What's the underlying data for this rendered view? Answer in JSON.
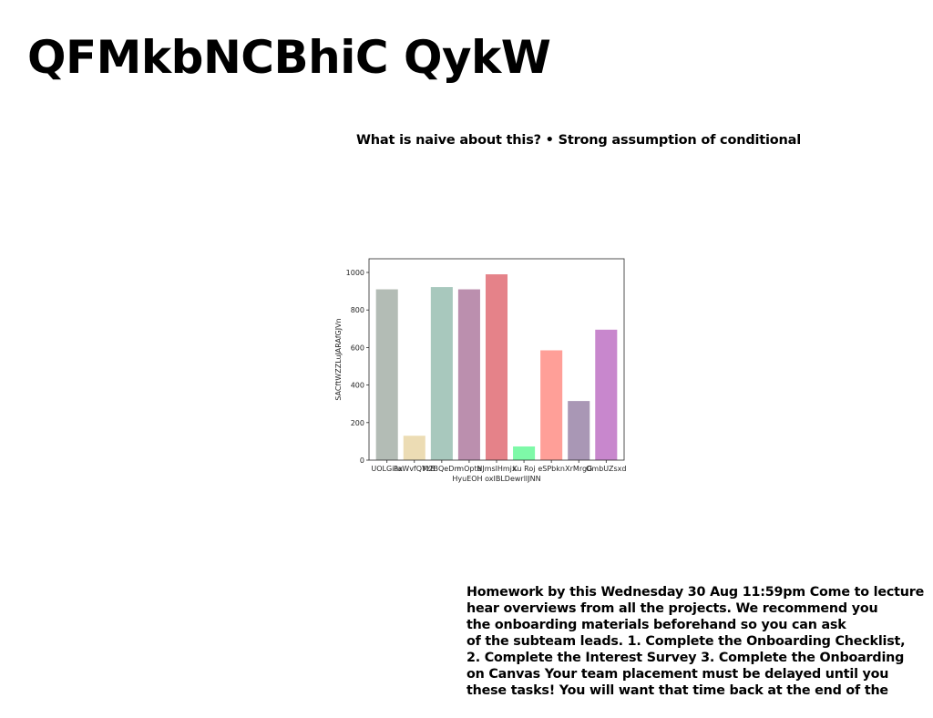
{
  "slide": {
    "title": "QFMkbNCBhiC QykW",
    "subtitle": "What is naive about this? • Strong assumption of conditional",
    "body_lines": [
      "Homework by this Wednesday 30 Aug 11:59pm Come to lecture",
      "hear overviews from all the projects. We recommend you",
      "the onboarding materials beforehand so you can ask",
      "of the subteam leads. 1. Complete the Onboarding Checklist,",
      "2. Complete the Interest Survey 3. Complete the Onboarding",
      "on Canvas Your team placement must be delayed until you",
      "these tasks! You will want that time back at the end of the"
    ]
  },
  "chart_data": {
    "type": "bar",
    "categories": [
      "UOLGiax",
      "PaWvfQYzB",
      "M2BQeDm",
      "mOpte",
      "NJmslHmjx",
      "Ku Roj",
      "eSPbkn",
      "XrMrgG",
      "OmbUZsxd"
    ],
    "values": [
      910,
      130,
      922,
      910,
      990,
      73,
      585,
      315,
      695
    ],
    "colors": [
      "#b3bcb5",
      "#ecdcb4",
      "#a8c8bd",
      "#bb8fae",
      "#e58289",
      "#7ef9a8",
      "#ff9f98",
      "#a997b5",
      "#c887cd"
    ],
    "title": "",
    "xlabel": "HyuEOH oxIBLDewrlIJNN",
    "ylabel": "SACftWZZLuJARAfGJVn",
    "ylim": [
      0,
      1000
    ],
    "yticks": [
      0,
      200,
      400,
      600,
      800,
      1000
    ],
    "grid": false,
    "legend": "none"
  }
}
